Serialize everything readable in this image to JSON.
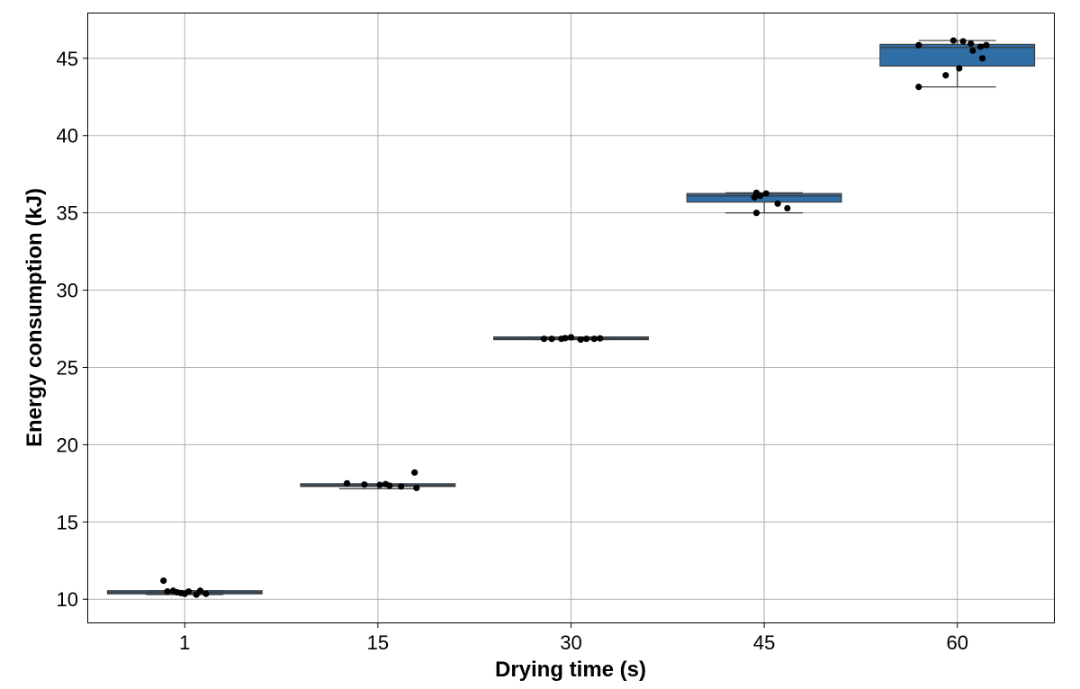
{
  "chart_data": {
    "type": "box",
    "xlabel": "Drying time (s)",
    "ylabel": "Energy consumption (kJ)",
    "categories": [
      "1",
      "15",
      "30",
      "45",
      "60"
    ],
    "ylim": [
      8.5,
      47.9
    ],
    "yticks": [
      10,
      15,
      20,
      25,
      30,
      35,
      40,
      45
    ],
    "grid": true,
    "box_color": "#2f6fa6",
    "point_color": "#000000",
    "boxes": [
      {
        "category": "1",
        "q1": 10.35,
        "median": 10.45,
        "q3": 10.55,
        "whisker_low": 10.3,
        "whisker_high": 10.55
      },
      {
        "category": "15",
        "q1": 17.32,
        "median": 17.37,
        "q3": 17.45,
        "whisker_low": 17.15,
        "whisker_high": 17.45
      },
      {
        "category": "30",
        "q1": 26.85,
        "median": 26.87,
        "q3": 26.92,
        "whisker_low": 26.8,
        "whisker_high": 26.92
      },
      {
        "category": "45",
        "q1": 35.7,
        "median": 36.1,
        "q3": 36.25,
        "whisker_low": 35.0,
        "whisker_high": 36.3
      },
      {
        "category": "60",
        "q1": 44.5,
        "median": 45.7,
        "q3": 45.9,
        "whisker_low": 43.15,
        "whisker_high": 46.15
      }
    ],
    "points": [
      {
        "category": "1",
        "values": [
          11.2,
          10.5,
          10.55,
          10.45,
          10.4,
          10.35,
          10.5,
          10.3,
          10.55,
          10.35
        ],
        "jitter": [
          -0.11,
          -0.09,
          -0.06,
          -0.04,
          -0.02,
          0.0,
          0.02,
          0.06,
          0.08,
          0.11
        ]
      },
      {
        "category": "15",
        "values": [
          17.5,
          17.42,
          17.4,
          17.35,
          17.3,
          18.2,
          17.2,
          17.45
        ],
        "jitter": [
          -0.16,
          -0.07,
          0.01,
          0.06,
          0.12,
          0.19,
          0.2,
          0.04
        ]
      },
      {
        "category": "30",
        "values": [
          26.85,
          26.85,
          26.85,
          26.9,
          26.95,
          26.8,
          26.85,
          26.85,
          26.88
        ],
        "jitter": [
          -0.14,
          -0.1,
          -0.05,
          -0.03,
          0.0,
          0.05,
          0.08,
          0.12,
          0.15
        ]
      },
      {
        "category": "45",
        "values": [
          36.3,
          36.2,
          36.0,
          36.25,
          35.6,
          35.3,
          35.0,
          36.1
        ],
        "jitter": [
          -0.04,
          -0.04,
          -0.05,
          0.01,
          0.07,
          0.12,
          -0.04,
          -0.02
        ]
      },
      {
        "category": "60",
        "values": [
          45.85,
          43.15,
          43.9,
          44.35,
          45.5,
          46.15,
          45.95,
          45.75,
          45.85,
          45.0,
          46.1
        ],
        "jitter": [
          -0.2,
          -0.2,
          -0.06,
          0.01,
          0.08,
          -0.02,
          0.07,
          0.12,
          0.15,
          0.13,
          0.03
        ]
      }
    ]
  }
}
